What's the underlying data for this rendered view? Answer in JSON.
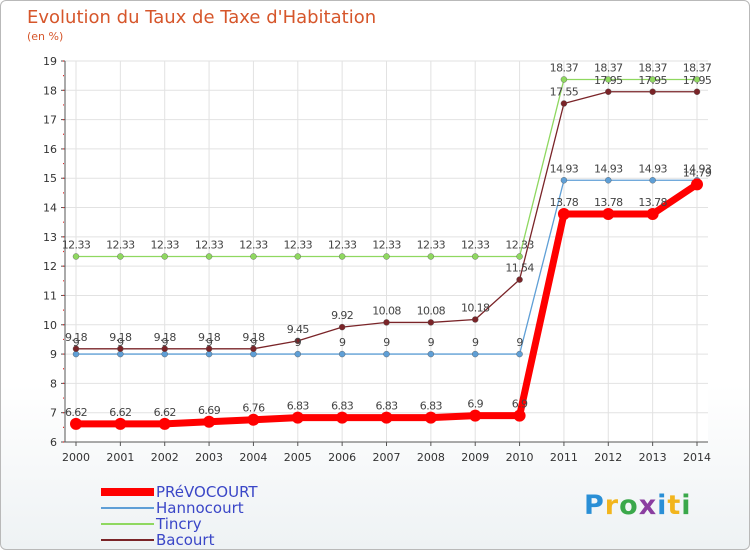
{
  "header": {
    "title": "Evolution du Taux de Taxe d'Habitation",
    "subtitle": "(en %)"
  },
  "logo": {
    "text": "Proxiti",
    "colors": [
      "#2a8fd6",
      "#f2b51d",
      "#3aa84a",
      "#8a3ea0"
    ]
  },
  "chart_data": {
    "type": "line",
    "title": "Evolution du Taux de Taxe d'Habitation",
    "ylabel": "(en %)",
    "xlabel": "",
    "x": [
      2000,
      2001,
      2002,
      2003,
      2004,
      2005,
      2006,
      2007,
      2008,
      2009,
      2010,
      2011,
      2012,
      2013,
      2014
    ],
    "ylim": [
      6,
      19
    ],
    "yticks": [
      6,
      7,
      8,
      9,
      10,
      11,
      12,
      13,
      14,
      15,
      16,
      17,
      18,
      19
    ],
    "grid": true,
    "legend": "bottom-left",
    "series": [
      {
        "name": "Tincry",
        "color": "#8fd860",
        "values": [
          12.33,
          12.33,
          12.33,
          12.33,
          12.33,
          12.33,
          12.33,
          12.33,
          12.33,
          12.33,
          12.33,
          18.37,
          18.37,
          18.37,
          18.37
        ],
        "labels": [
          "12.33",
          "12.33",
          "12.33",
          "12.33",
          "12.33",
          "12.33",
          "12.33",
          "12.33",
          "12.33",
          "12.33",
          "12.33",
          "18.37",
          "18.37",
          "18.37",
          "18.37"
        ]
      },
      {
        "name": "Hannocourt",
        "color": "#5f9fd6",
        "values": [
          9,
          9,
          9,
          9,
          9,
          9,
          9,
          9,
          9,
          9,
          9,
          14.93,
          14.93,
          14.93,
          14.93
        ],
        "labels": [
          "9",
          "9",
          "9",
          "9",
          "9",
          "9",
          "9",
          "9",
          "9",
          "9",
          "9",
          "14.93",
          "14.93",
          "14.93",
          "14.93"
        ]
      },
      {
        "name": "Bacourt",
        "color": "#7a2428",
        "values": [
          9.18,
          9.18,
          9.18,
          9.18,
          9.18,
          9.45,
          9.92,
          10.08,
          10.08,
          10.18,
          11.54,
          17.55,
          17.95,
          17.95,
          17.95
        ],
        "labels": [
          "9.18",
          "9.18",
          "9.18",
          "9.18",
          "9.18",
          "9.45",
          "9.92",
          "10.08",
          "10.08",
          "10.18",
          "11.54",
          "17.55",
          "17.95",
          "17.95",
          "17.95"
        ]
      },
      {
        "name": "PRéVOCOURT",
        "color": "#ff0000",
        "values": [
          6.62,
          6.62,
          6.62,
          6.69,
          6.76,
          6.83,
          6.83,
          6.83,
          6.83,
          6.9,
          6.9,
          13.78,
          13.78,
          13.78,
          14.79
        ],
        "labels": [
          "6.62",
          "6.62",
          "6.62",
          "6.69",
          "6.76",
          "6.83",
          "6.83",
          "6.83",
          "6.83",
          "6.9",
          "6.9",
          "13.78",
          "13.78",
          "13.78",
          "14.79"
        ]
      }
    ],
    "legend_entries": [
      {
        "name": "PRéVOCOURT",
        "color": "#ff0000"
      },
      {
        "name": "Hannocourt",
        "color": "#5f9fd6"
      },
      {
        "name": "Tincry",
        "color": "#8fd860"
      },
      {
        "name": "Bacourt",
        "color": "#7a2428"
      }
    ]
  }
}
